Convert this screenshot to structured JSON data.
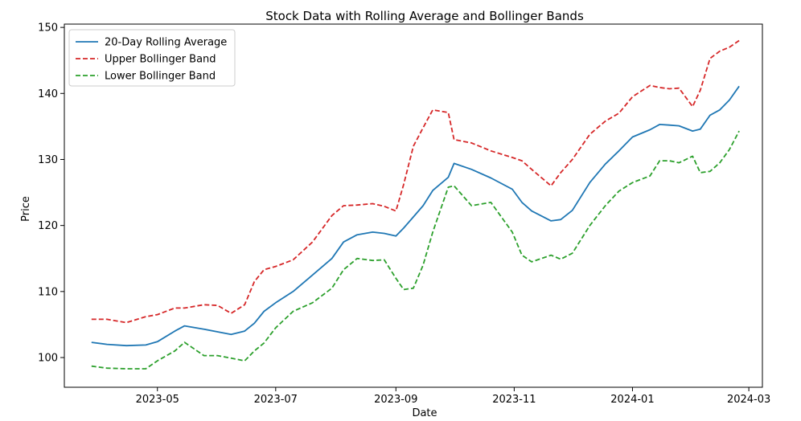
{
  "chart_data": {
    "type": "line",
    "title": "Stock Data with Rolling Average and Bollinger Bands",
    "xlabel": "Date",
    "ylabel": "Price",
    "x_ticks": [
      "2023-05",
      "2023-07",
      "2023-09",
      "2023-11",
      "2024-01",
      "2024-03"
    ],
    "y_ticks": [
      100,
      110,
      120,
      130,
      140,
      150
    ],
    "xlim": [
      "2023-03-14",
      "2024-03-08"
    ],
    "ylim": [
      95.5,
      150.5
    ],
    "grid": false,
    "legend_position": "upper-left",
    "series": [
      {
        "name": "20-Day Rolling Average",
        "color": "#1f77b4",
        "style": "solid",
        "x": [
          "2023-03-28",
          "2023-04-05",
          "2023-04-15",
          "2023-04-25",
          "2023-05-01",
          "2023-05-10",
          "2023-05-15",
          "2023-05-25",
          "2023-06-01",
          "2023-06-08",
          "2023-06-15",
          "2023-06-20",
          "2023-06-25",
          "2023-07-01",
          "2023-07-10",
          "2023-07-20",
          "2023-07-30",
          "2023-08-05",
          "2023-08-12",
          "2023-08-20",
          "2023-08-26",
          "2023-09-01",
          "2023-09-05",
          "2023-09-10",
          "2023-09-15",
          "2023-09-20",
          "2023-09-28",
          "2023-10-01",
          "2023-10-10",
          "2023-10-20",
          "2023-10-31",
          "2023-11-05",
          "2023-11-10",
          "2023-11-20",
          "2023-11-25",
          "2023-12-01",
          "2023-12-10",
          "2023-12-18",
          "2023-12-25",
          "2024-01-01",
          "2024-01-10",
          "2024-01-15",
          "2024-01-20",
          "2024-01-25",
          "2024-02-01",
          "2024-02-05",
          "2024-02-10",
          "2024-02-15",
          "2024-02-20",
          "2024-02-25"
        ],
        "y": [
          102.3,
          102.0,
          101.8,
          101.9,
          102.4,
          104.0,
          104.8,
          104.3,
          103.9,
          103.5,
          104.0,
          105.2,
          107.0,
          108.3,
          110.0,
          112.5,
          115.0,
          117.5,
          118.6,
          119.0,
          118.8,
          118.4,
          119.6,
          121.3,
          123.0,
          125.3,
          127.3,
          129.4,
          128.5,
          127.2,
          125.5,
          123.5,
          122.2,
          120.7,
          120.9,
          122.3,
          126.5,
          129.3,
          131.3,
          133.4,
          134.5,
          135.3,
          135.2,
          135.1,
          134.3,
          134.6,
          136.7,
          137.5,
          139.0,
          141.1
        ]
      },
      {
        "name": "Upper Bollinger Band",
        "color": "#d62728",
        "style": "dashed",
        "x": [
          "2023-03-28",
          "2023-04-05",
          "2023-04-15",
          "2023-04-25",
          "2023-05-01",
          "2023-05-10",
          "2023-05-15",
          "2023-05-25",
          "2023-06-01",
          "2023-06-08",
          "2023-06-15",
          "2023-06-20",
          "2023-06-25",
          "2023-07-01",
          "2023-07-10",
          "2023-07-20",
          "2023-07-30",
          "2023-08-05",
          "2023-08-12",
          "2023-08-20",
          "2023-08-26",
          "2023-09-01",
          "2023-09-05",
          "2023-09-10",
          "2023-09-15",
          "2023-09-20",
          "2023-09-28",
          "2023-10-01",
          "2023-10-10",
          "2023-10-20",
          "2023-10-31",
          "2023-11-05",
          "2023-11-10",
          "2023-11-20",
          "2023-11-25",
          "2023-12-01",
          "2023-12-10",
          "2023-12-18",
          "2023-12-25",
          "2024-01-01",
          "2024-01-10",
          "2024-01-15",
          "2024-01-20",
          "2024-01-25",
          "2024-02-01",
          "2024-02-05",
          "2024-02-10",
          "2024-02-15",
          "2024-02-20",
          "2024-02-25"
        ],
        "y": [
          105.8,
          105.8,
          105.3,
          106.2,
          106.5,
          107.5,
          107.5,
          108.0,
          107.9,
          106.7,
          108.0,
          111.5,
          113.3,
          113.8,
          114.8,
          117.5,
          121.5,
          123.0,
          123.1,
          123.3,
          122.9,
          122.2,
          126.2,
          132.0,
          134.8,
          137.5,
          137.1,
          133.0,
          132.5,
          131.3,
          130.3,
          129.8,
          128.5,
          126.0,
          128.0,
          130.0,
          133.8,
          135.8,
          137.0,
          139.5,
          141.2,
          140.9,
          140.7,
          140.8,
          138.0,
          140.5,
          145.3,
          146.4,
          147.0,
          148.0
        ]
      },
      {
        "name": "Lower Bollinger Band",
        "color": "#2ca02c",
        "style": "dashed",
        "x": [
          "2023-03-28",
          "2023-04-05",
          "2023-04-15",
          "2023-04-25",
          "2023-05-01",
          "2023-05-10",
          "2023-05-15",
          "2023-05-25",
          "2023-06-01",
          "2023-06-08",
          "2023-06-15",
          "2023-06-20",
          "2023-06-25",
          "2023-07-01",
          "2023-07-10",
          "2023-07-20",
          "2023-07-30",
          "2023-08-05",
          "2023-08-12",
          "2023-08-20",
          "2023-08-26",
          "2023-09-01",
          "2023-09-05",
          "2023-09-10",
          "2023-09-15",
          "2023-09-20",
          "2023-09-28",
          "2023-10-01",
          "2023-10-10",
          "2023-10-20",
          "2023-10-31",
          "2023-11-05",
          "2023-11-10",
          "2023-11-20",
          "2023-11-25",
          "2023-12-01",
          "2023-12-10",
          "2023-12-18",
          "2023-12-25",
          "2024-01-01",
          "2024-01-10",
          "2024-01-15",
          "2024-01-20",
          "2024-01-25",
          "2024-02-01",
          "2024-02-05",
          "2024-02-10",
          "2024-02-15",
          "2024-02-20",
          "2024-02-25"
        ],
        "y": [
          98.7,
          98.4,
          98.3,
          98.3,
          99.5,
          101.0,
          102.3,
          100.3,
          100.3,
          99.9,
          99.5,
          101.0,
          102.2,
          104.5,
          107.0,
          108.3,
          110.5,
          113.3,
          115.0,
          114.7,
          114.8,
          112.0,
          110.3,
          110.5,
          114.0,
          119.0,
          125.8,
          126.0,
          123.0,
          123.5,
          119.0,
          115.5,
          114.5,
          115.5,
          114.9,
          115.8,
          120.0,
          123.0,
          125.2,
          126.5,
          127.5,
          129.8,
          129.8,
          129.5,
          130.5,
          128.0,
          128.2,
          129.5,
          131.5,
          134.3
        ]
      }
    ]
  }
}
